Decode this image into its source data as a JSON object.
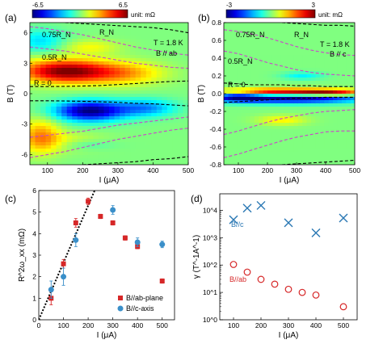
{
  "chart_data": [
    {
      "panel_label": "(a)",
      "type": "heatmap",
      "colorbar": {
        "min_label": "-6.5",
        "max_label": "6.5",
        "unit_label": "unit: mΩ",
        "min": -6.5,
        "max": 6.5
      },
      "xlabel": "I (μA)",
      "ylabel": "B (T)",
      "xlim": [
        50,
        500
      ],
      "ylim": [
        -7,
        7
      ],
      "xticks": [
        "100",
        "200",
        "300",
        "400",
        "500"
      ],
      "yticks": [
        "6",
        "3",
        "0",
        "-3",
        "-6"
      ],
      "annotations": {
        "T": "T = 1.8 K",
        "B": "B // ab",
        "RN": "R_N",
        "r075": "0.75R_N",
        "r05": "0.5R_N",
        "r0": "R = 0"
      },
      "contours": [
        {
          "name": "R = 0 (upper)",
          "x": [
            50,
            100,
            150,
            200,
            250,
            300,
            350,
            400,
            450,
            500
          ],
          "y": [
            0.7,
            0.7,
            0.72,
            0.75,
            0.8,
            0.9,
            1.0,
            1.1,
            1.2,
            1.25
          ]
        },
        {
          "name": "R = 0 (lower)",
          "x": [
            50,
            100,
            150,
            200,
            250,
            300,
            350,
            400,
            450,
            500
          ],
          "y": [
            -0.7,
            -0.7,
            -0.72,
            -0.75,
            -0.8,
            -0.85,
            -0.95,
            -1.0,
            -1.1,
            -1.2
          ]
        },
        {
          "name": "R_N (upper)",
          "x": [
            150,
            200,
            250,
            300,
            350,
            400,
            450,
            500
          ],
          "y": [
            7.0,
            6.9,
            6.8,
            6.7,
            6.6,
            6.5,
            6.3,
            6.0
          ]
        },
        {
          "name": "R_N (lower)",
          "x": [
            200,
            250,
            300,
            350,
            400,
            450,
            500
          ],
          "y": [
            -7.0,
            -6.9,
            -6.8,
            -6.7,
            -6.5,
            -6.4,
            -6.2
          ]
        },
        {
          "name": "0.75R_N (upper)",
          "x": [
            50,
            100,
            150,
            200,
            250,
            300,
            350,
            400,
            450,
            500
          ],
          "y": [
            6.6,
            6.4,
            6.1,
            5.8,
            5.4,
            5.0,
            4.6,
            4.3,
            4.0,
            3.8
          ]
        },
        {
          "name": "0.75R_N (lower)",
          "x": [
            50,
            100,
            150,
            200,
            250,
            300,
            350,
            400,
            450,
            500
          ],
          "y": [
            -6.3,
            -6.0,
            -5.7,
            -5.3,
            -4.9,
            -4.5,
            -4.2,
            -3.9,
            -3.6,
            -3.4
          ]
        },
        {
          "name": "0.5R_N (upper)",
          "x": [
            50,
            100,
            150,
            200,
            250,
            300,
            350,
            400,
            450,
            500
          ],
          "y": [
            4.6,
            4.4,
            4.2,
            3.9,
            3.6,
            3.3,
            3.0,
            2.8,
            2.6,
            2.5
          ]
        },
        {
          "name": "0.5R_N (lower)",
          "x": [
            50,
            100,
            150,
            200,
            250,
            300,
            350,
            400,
            450,
            500
          ],
          "y": [
            -4.3,
            -4.1,
            -3.9,
            -3.7,
            -3.4,
            -3.1,
            -2.9,
            -2.7,
            -2.5,
            -2.3
          ]
        }
      ],
      "features": [
        {
          "x": 150,
          "y": 2.2,
          "value": 6.5,
          "sx": 90,
          "sy": 0.8
        },
        {
          "x": 320,
          "y": 2.0,
          "value": 2.5,
          "sx": 80,
          "sy": 0.8
        },
        {
          "x": 220,
          "y": -1.7,
          "value": -6.5,
          "sx": 70,
          "sy": 0.7
        },
        {
          "x": 380,
          "y": -1.4,
          "value": -3.0,
          "sx": 60,
          "sy": 0.6
        },
        {
          "x": 80,
          "y": 5.2,
          "value": -2.0,
          "sx": 50,
          "sy": 0.8
        },
        {
          "x": 80,
          "y": -4.2,
          "value": 3.0,
          "sx": 40,
          "sy": 1.2
        },
        {
          "x": 170,
          "y": -4.8,
          "value": 1.5,
          "sx": 70,
          "sy": 0.6
        },
        {
          "x": 220,
          "y": 4.6,
          "value": 1.5,
          "sx": 60,
          "sy": 0.5
        },
        {
          "x": 200,
          "y": -5.0,
          "value": -1.5,
          "sx": 60,
          "sy": 0.4
        }
      ]
    },
    {
      "panel_label": "(b)",
      "type": "heatmap",
      "colorbar": {
        "min_label": "-3",
        "max_label": "3",
        "unit_label": "unit: mΩ",
        "min": -3,
        "max": 3
      },
      "xlabel": "I (μA)",
      "ylabel": "B (T)",
      "xlim": [
        50,
        500
      ],
      "ylim": [
        -0.8,
        0.8
      ],
      "xticks": [
        "100",
        "200",
        "300",
        "400",
        "500"
      ],
      "yticks": [
        "0.8",
        "0.6",
        "0.4",
        "0.2",
        "0.0",
        "-0.2",
        "-0.4",
        "-0.6",
        "-0.8"
      ],
      "annotations": {
        "T": "T = 1.8 K",
        "B": "B // c",
        "RN": "R_N",
        "r075": "0.75R_N",
        "r05": "0.5R_N",
        "r0": "R = 0"
      },
      "contours": [
        {
          "name": "R = 0 (upper)",
          "x": [
            50,
            100,
            150,
            200,
            250,
            300,
            350,
            400,
            450,
            500
          ],
          "y": [
            0.12,
            0.11,
            0.1,
            0.1,
            0.1,
            0.09,
            0.09,
            0.08,
            0.08,
            0.08
          ]
        },
        {
          "name": "R = 0 (lower)",
          "x": [
            50,
            100,
            150,
            200,
            250,
            300,
            350,
            400,
            450,
            500
          ],
          "y": [
            -0.1,
            -0.09,
            -0.08,
            -0.07,
            -0.06,
            -0.05,
            -0.05,
            -0.04,
            -0.04,
            -0.04
          ]
        },
        {
          "name": "R_N (upper)",
          "x": [
            250,
            300,
            350,
            400,
            450,
            500
          ],
          "y": [
            0.8,
            0.79,
            0.78,
            0.77,
            0.77,
            0.76
          ]
        },
        {
          "name": "R_N (lower)",
          "x": [
            250,
            300,
            350,
            400,
            450,
            500
          ],
          "y": [
            -0.8,
            -0.79,
            -0.78,
            -0.77,
            -0.76,
            -0.75
          ]
        },
        {
          "name": "0.75R_N (upper)",
          "x": [
            50,
            100,
            150,
            200,
            250,
            300,
            350,
            400,
            450,
            500
          ],
          "y": [
            0.72,
            0.7,
            0.67,
            0.63,
            0.58,
            0.53,
            0.49,
            0.46,
            0.44,
            0.43
          ]
        },
        {
          "name": "0.75R_N (lower)",
          "x": [
            50,
            100,
            150,
            200,
            250,
            300,
            350,
            400,
            450,
            500
          ],
          "y": [
            -0.72,
            -0.68,
            -0.63,
            -0.58,
            -0.53,
            -0.49,
            -0.46,
            -0.43,
            -0.42,
            -0.42
          ]
        },
        {
          "name": "0.5R_N (upper)",
          "x": [
            50,
            100,
            150,
            200,
            250,
            300,
            350,
            400,
            450,
            500
          ],
          "y": [
            0.48,
            0.45,
            0.4,
            0.35,
            0.31,
            0.27,
            0.24,
            0.22,
            0.21,
            0.2
          ]
        },
        {
          "name": "0.5R_N (lower)",
          "x": [
            50,
            100,
            150,
            200,
            250,
            300,
            350,
            400,
            450,
            500
          ],
          "y": [
            -0.46,
            -0.42,
            -0.37,
            -0.32,
            -0.28,
            -0.25,
            -0.22,
            -0.2,
            -0.19,
            -0.18
          ]
        }
      ],
      "features": [
        {
          "x": 230,
          "y": 0.015,
          "value": 3.0,
          "sx": 150,
          "sy": 0.03
        },
        {
          "x": 420,
          "y": 0.01,
          "value": 2.0,
          "sx": 80,
          "sy": 0.025
        },
        {
          "x": 280,
          "y": -0.05,
          "value": -3.0,
          "sx": 180,
          "sy": 0.04
        },
        {
          "x": 100,
          "y": -0.03,
          "value": -1.8,
          "sx": 60,
          "sy": 0.04
        },
        {
          "x": 320,
          "y": 0.2,
          "value": -0.8,
          "sx": 50,
          "sy": 0.03
        },
        {
          "x": 250,
          "y": -0.3,
          "value": 0.8,
          "sx": 60,
          "sy": 0.04
        }
      ]
    },
    {
      "panel_label": "(c)",
      "type": "scatter",
      "xlabel": "I (μA)",
      "ylabel": "R^2ω_xx (mΩ)",
      "xlim": [
        0,
        550
      ],
      "ylim": [
        0,
        6
      ],
      "xticks": [
        0,
        100,
        200,
        300,
        400,
        500
      ],
      "yticks": [
        0,
        1,
        2,
        3,
        4,
        5,
        6
      ],
      "legend_position": "bottom-right",
      "series": [
        {
          "name": "B//ab-plane",
          "marker": "square",
          "color": "#d62728",
          "x": [
            50,
            100,
            150,
            200,
            250,
            300,
            350,
            400,
            500
          ],
          "y": [
            1.0,
            2.6,
            4.5,
            5.5,
            4.8,
            4.5,
            3.8,
            3.4,
            1.8
          ],
          "err": [
            0.3,
            0.2,
            0.2,
            0.15,
            0.1,
            0.1,
            0.1,
            0.1,
            0.1
          ]
        },
        {
          "name": "B//c-axis",
          "marker": "circle",
          "color": "#3a8fc9",
          "x": [
            50,
            100,
            150,
            300,
            400,
            500
          ],
          "y": [
            1.4,
            2.0,
            3.7,
            5.1,
            3.6,
            3.5
          ],
          "err": [
            0.4,
            0.4,
            0.3,
            0.2,
            0.2,
            0.15
          ]
        }
      ],
      "fit_line": {
        "x": [
          0,
          230
        ],
        "y": [
          0.0,
          6.1
        ],
        "style": "dotted"
      }
    },
    {
      "panel_label": "(d)",
      "type": "scatter",
      "xlabel": "I (μA)",
      "ylabel": "γ (T^-1A^-1)",
      "xlim": [
        50,
        550
      ],
      "ylim": [
        1,
        40000
      ],
      "log_y": true,
      "xticks": [
        100,
        200,
        300,
        400,
        500
      ],
      "yticks": [
        "10^0",
        "10^1",
        "10^2",
        "10^3",
        "10^4"
      ],
      "series": [
        {
          "name": "B//c",
          "marker": "x",
          "color": "#2b78b4",
          "x": [
            100,
            150,
            200,
            300,
            400,
            500
          ],
          "y": [
            4500,
            12000,
            15000,
            3500,
            1500,
            5200
          ]
        },
        {
          "name": "B//ab",
          "marker": "open-circle",
          "color": "#d62728",
          "x": [
            100,
            150,
            200,
            250,
            300,
            350,
            400,
            500
          ],
          "y": [
            105,
            55,
            30,
            20,
            13,
            10,
            8,
            3
          ]
        }
      ]
    }
  ]
}
